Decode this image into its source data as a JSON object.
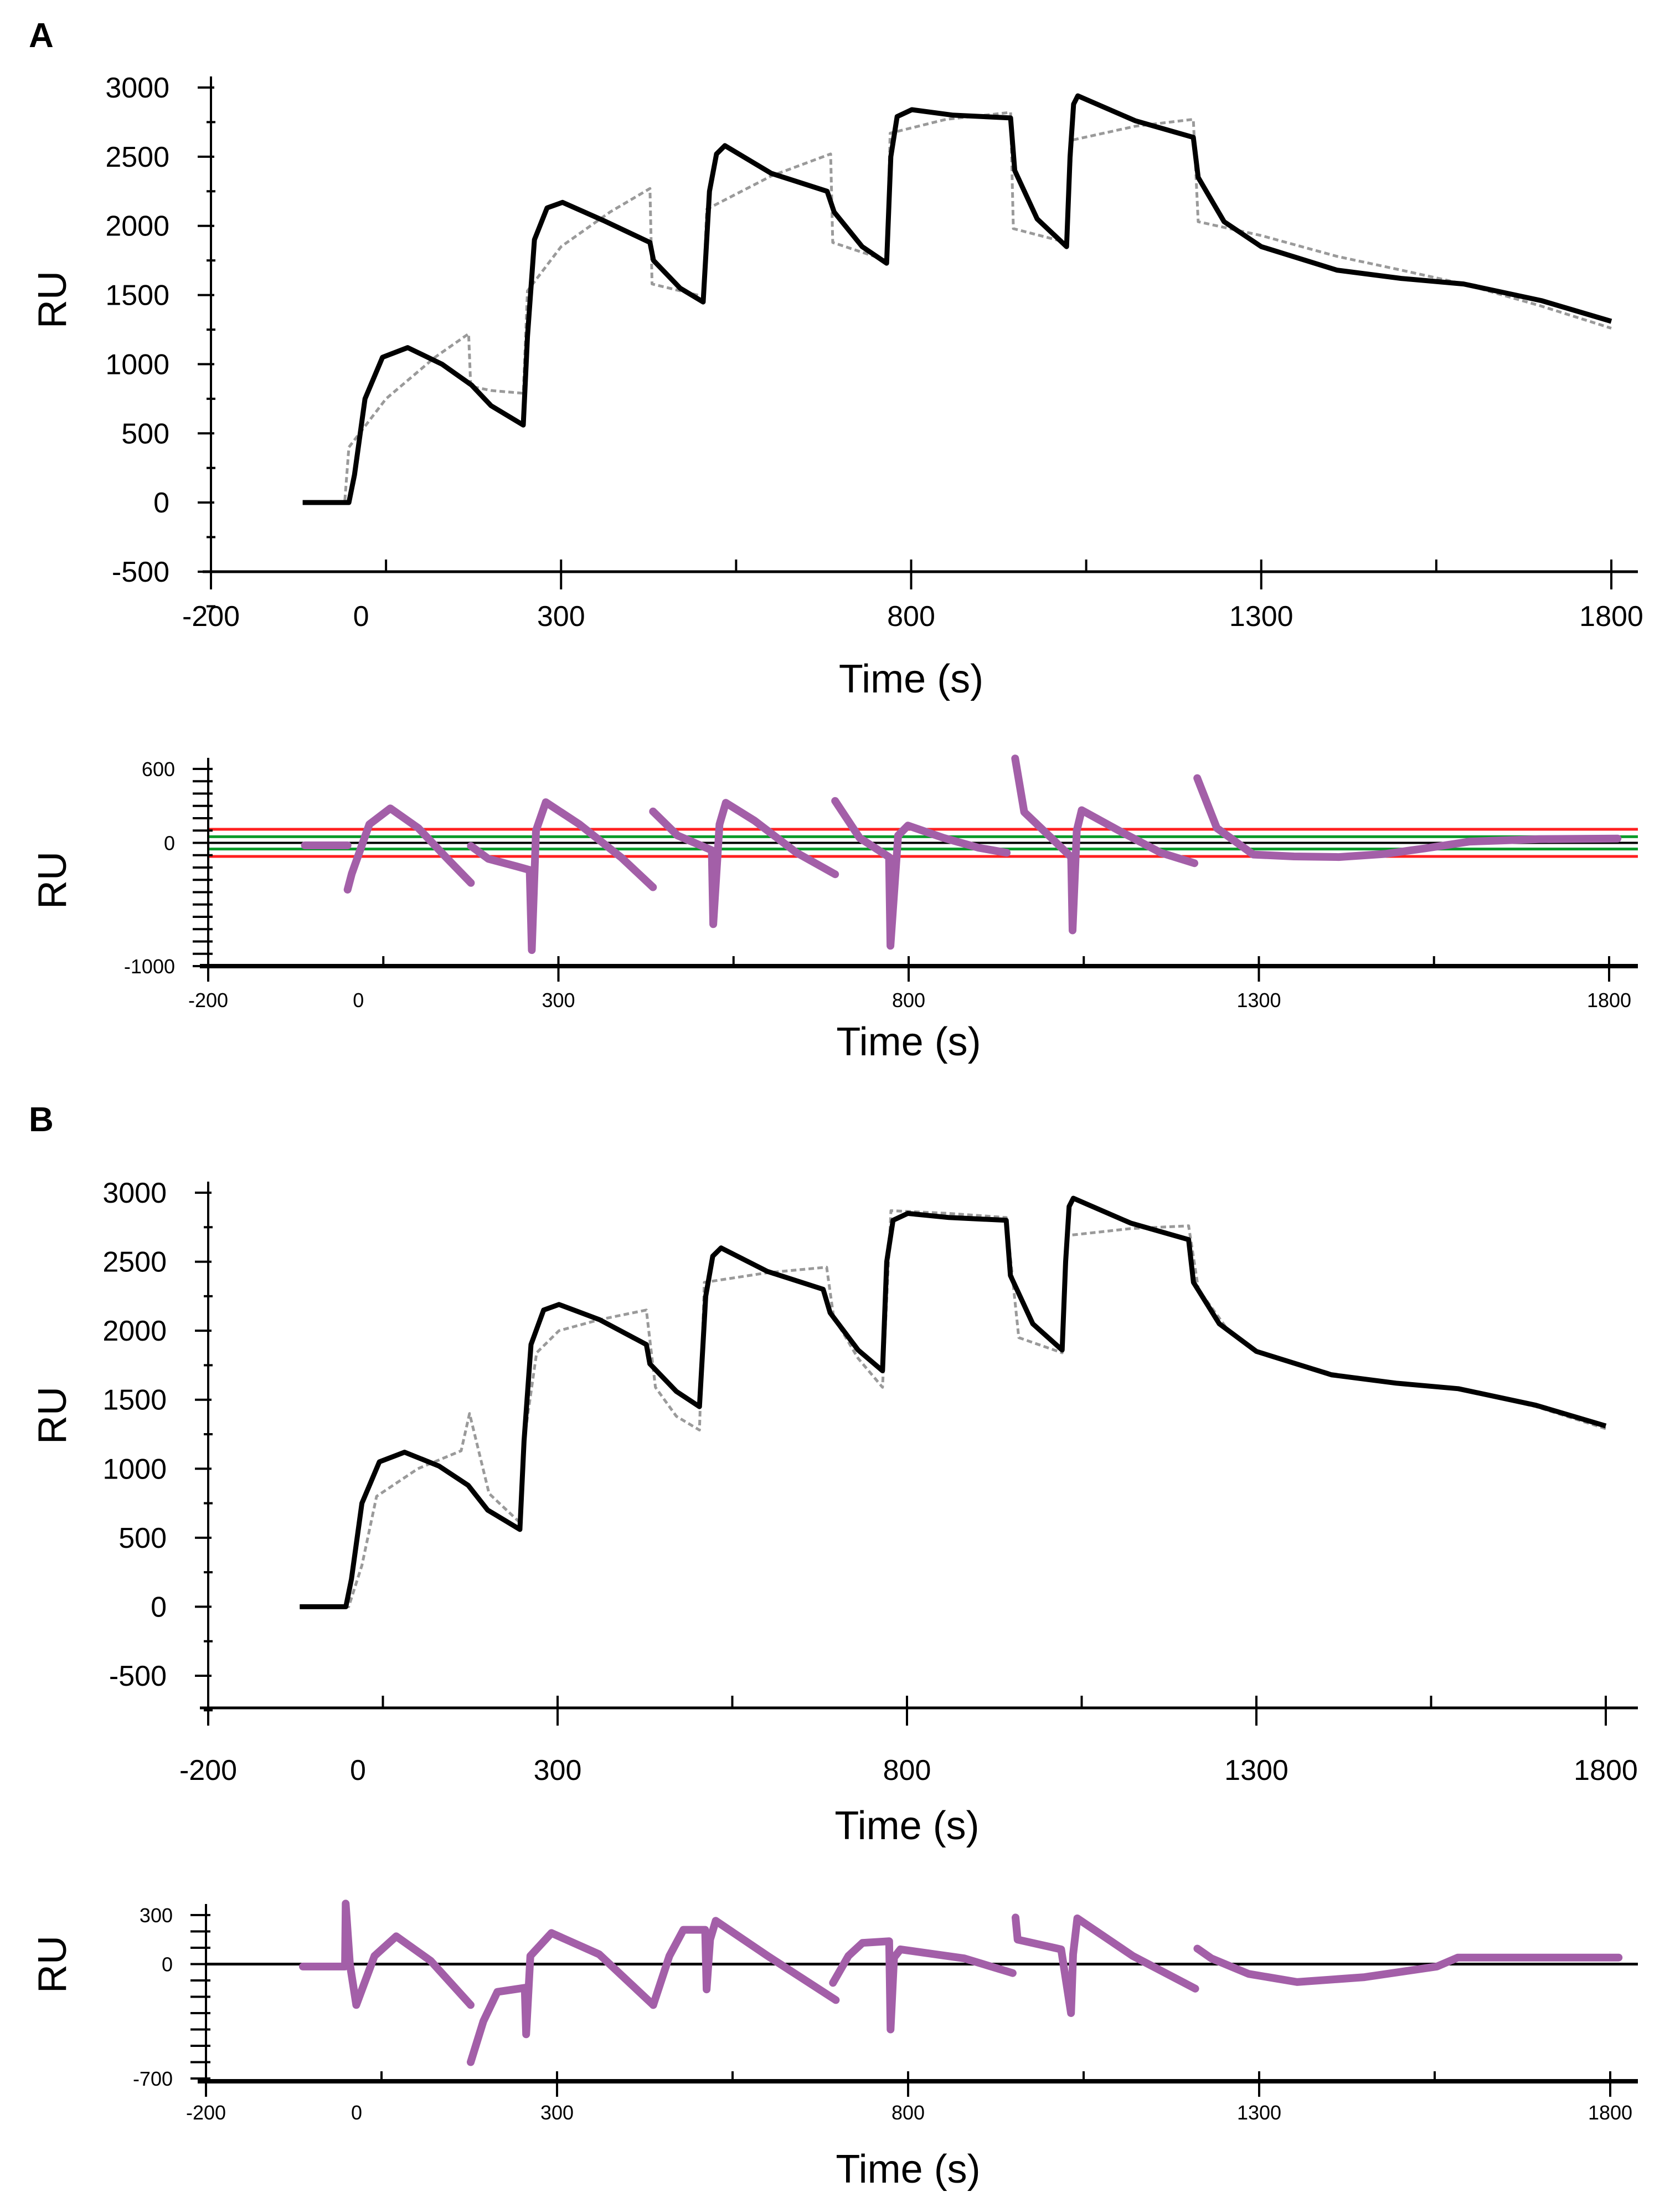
{
  "panels": {
    "A": {
      "letter": "A"
    },
    "B": {
      "letter": "B"
    }
  },
  "colors": {
    "data": "#000000",
    "fit": "#9a9a9a",
    "residual": "#a35fa8",
    "limit_red": "#ff2020",
    "limit_green": "#0a9a2a",
    "zero_line": "#000000"
  },
  "chart_data": [
    {
      "id": "A-sensorgram",
      "type": "line",
      "xlabel": "Time (s)",
      "ylabel": "RU",
      "xlim": [
        -200,
        1800
      ],
      "ylim": [
        -500,
        3000
      ],
      "xticks": [
        -200,
        50,
        300,
        550,
        800,
        1050,
        1300,
        1550,
        1800
      ],
      "xtick_labels": [
        {
          "at": -200,
          "label": "-200"
        },
        {
          "at": 50,
          "label": "0"
        },
        {
          "at": 300,
          "label": "300"
        },
        {
          "at": 800,
          "label": "800"
        },
        {
          "at": 1300,
          "label": "1300"
        },
        {
          "at": 1800,
          "label": "1800"
        }
      ],
      "yticks": [
        -500,
        0,
        500,
        1000,
        1500,
        2000,
        2500,
        3000
      ],
      "ytick_labels": [
        "-500",
        "0",
        "500",
        "1000",
        "1500",
        "2000",
        "2500",
        "3000"
      ],
      "series": [
        {
          "name": "data",
          "style": "solid",
          "x": [
            -69,
            -3,
            5,
            20,
            45,
            81,
            130,
            172,
            200,
            246,
            252,
            262,
            280,
            302,
            360,
            427,
            432,
            470,
            503,
            512,
            522,
            534,
            600,
            680,
            690,
            730,
            765,
            771,
            780,
            801,
            860,
            942,
            948,
            980,
            1022,
            1027,
            1032,
            1038,
            1120,
            1203,
            1210,
            1247,
            1300,
            1408,
            1500,
            1589,
            1700,
            1800
          ],
          "y": [
            0,
            0,
            200,
            750,
            1050,
            1120,
            1000,
            850,
            700,
            560,
            1200,
            1900,
            2130,
            2170,
            2040,
            1880,
            1750,
            1550,
            1450,
            2250,
            2520,
            2580,
            2380,
            2250,
            2100,
            1850,
            1730,
            2500,
            2790,
            2840,
            2800,
            2780,
            2400,
            2050,
            1850,
            2500,
            2880,
            2940,
            2760,
            2640,
            2350,
            2030,
            1850,
            1680,
            1620,
            1580,
            1460,
            1310
          ]
        },
        {
          "name": "fit",
          "style": "dashed",
          "x": [
            -69,
            -9,
            -3,
            50,
            120,
            168,
            171,
            200,
            246,
            252,
            300,
            370,
            427,
            430,
            503,
            508,
            600,
            685,
            688,
            765,
            770,
            850,
            942,
            946,
            1022,
            1030,
            1120,
            1203,
            1210,
            1300,
            1408,
            1500,
            1589,
            1700,
            1800
          ],
          "y": [
            0,
            0,
            400,
            750,
            1050,
            1220,
            840,
            810,
            790,
            1530,
            1850,
            2100,
            2270,
            1580,
            1490,
            2120,
            2360,
            2520,
            1880,
            1750,
            2670,
            2770,
            2820,
            1980,
            1880,
            2620,
            2720,
            2770,
            2030,
            1930,
            1780,
            1680,
            1580,
            1420,
            1260
          ]
        }
      ]
    },
    {
      "id": "A-residuals",
      "type": "line",
      "xlabel": "Time (s)",
      "ylabel": "RU",
      "xlim": [
        -200,
        1800
      ],
      "ylim": [
        -1000,
        600
      ],
      "xticks": [
        -200,
        50,
        300,
        550,
        800,
        1050,
        1300,
        1550,
        1800
      ],
      "xtick_labels": [
        {
          "at": -200,
          "label": "-200"
        },
        {
          "at": 50,
          "label": "0"
        },
        {
          "at": 300,
          "label": "300"
        },
        {
          "at": 800,
          "label": "800"
        },
        {
          "at": 1300,
          "label": "1300"
        },
        {
          "at": 1800,
          "label": "1800"
        }
      ],
      "yticks": [
        -1000,
        -900,
        -800,
        -700,
        -600,
        -500,
        -400,
        -300,
        -200,
        -100,
        0,
        100,
        200,
        300,
        400,
        500,
        600
      ],
      "ytick_labels": [
        {
          "at": 600,
          "label": "600"
        },
        {
          "at": 0,
          "label": "0"
        },
        {
          "at": -1000,
          "label": "-1000"
        }
      ],
      "limit_lines": [
        {
          "value": 110,
          "color": "red"
        },
        {
          "value": -110,
          "color": "red"
        },
        {
          "value": 50,
          "color": "green"
        },
        {
          "value": -50,
          "color": "green"
        }
      ],
      "residual_segments": [
        {
          "x": [
            -62,
            -1
          ],
          "y": [
            -20,
            -20
          ]
        },
        {
          "x": [
            -1,
            5,
            30,
            60,
            100,
            140,
            175
          ],
          "y": [
            -380,
            -250,
            150,
            280,
            120,
            -120,
            -325
          ]
        },
        {
          "x": [
            175,
            200,
            240,
            259,
            262,
            268,
            282,
            330,
            390,
            435
          ],
          "y": [
            -25,
            -130,
            -190,
            -220,
            -870,
            100,
            330,
            150,
            -120,
            -360
          ]
        },
        {
          "x": [
            435,
            470,
            519,
            521,
            530,
            539,
            580,
            640,
            695
          ],
          "y": [
            255,
            60,
            -60,
            -660,
            150,
            325,
            180,
            -80,
            -255
          ]
        },
        {
          "x": [
            695,
            730,
            772,
            774,
            785,
            799,
            850,
            900,
            940
          ],
          "y": [
            340,
            40,
            -115,
            -835,
            60,
            140,
            40,
            -40,
            -80
          ]
        },
        {
          "x": [
            952,
            965,
            1000,
            1032,
            1034,
            1040,
            1047,
            1100,
            1160,
            1208
          ],
          "y": [
            685,
            250,
            60,
            -115,
            -710,
            100,
            265,
            100,
            -80,
            -165
          ]
        },
        {
          "x": [
            1212,
            1240,
            1292,
            1350,
            1414,
            1480,
            1537,
            1600,
            1700,
            1812
          ],
          "y": [
            525,
            120,
            -95,
            -110,
            -115,
            -90,
            -45,
            10,
            30,
            35
          ]
        }
      ]
    },
    {
      "id": "B-sensorgram",
      "type": "line",
      "xlabel": "Time (s)",
      "ylabel": "RU",
      "xlim": [
        -200,
        1800
      ],
      "ylim": [
        -500,
        3000
      ],
      "xticks": [
        -200,
        50,
        300,
        550,
        800,
        1050,
        1300,
        1550,
        1800
      ],
      "xtick_labels": [
        {
          "at": -200,
          "label": "-200"
        },
        {
          "at": 50,
          "label": "0"
        },
        {
          "at": 300,
          "label": "300"
        },
        {
          "at": 800,
          "label": "800"
        },
        {
          "at": 1300,
          "label": "1300"
        },
        {
          "at": 1800,
          "label": "1800"
        }
      ],
      "yticks": [
        -500,
        0,
        500,
        1000,
        1500,
        2000,
        2500,
        3000
      ],
      "ytick_labels": [
        "-500",
        "0",
        "500",
        "1000",
        "1500",
        "2000",
        "2500",
        "3000"
      ],
      "series": [
        {
          "name": "data",
          "style": "solid",
          "x": [
            -69,
            -3,
            5,
            20,
            45,
            81,
            130,
            172,
            200,
            246,
            252,
            262,
            280,
            302,
            360,
            427,
            432,
            470,
            503,
            512,
            522,
            534,
            600,
            680,
            690,
            730,
            765,
            771,
            780,
            801,
            860,
            942,
            948,
            980,
            1022,
            1027,
            1032,
            1038,
            1120,
            1203,
            1210,
            1247,
            1300,
            1408,
            1500,
            1589,
            1700,
            1800
          ],
          "y": [
            0,
            0,
            200,
            750,
            1050,
            1120,
            1020,
            880,
            700,
            560,
            1200,
            1900,
            2150,
            2190,
            2080,
            1900,
            1760,
            1560,
            1450,
            2250,
            2540,
            2600,
            2430,
            2300,
            2130,
            1860,
            1710,
            2500,
            2800,
            2850,
            2820,
            2800,
            2400,
            2050,
            1860,
            2500,
            2900,
            2960,
            2780,
            2660,
            2350,
            2050,
            1850,
            1680,
            1620,
            1580,
            1460,
            1310
          ]
        },
        {
          "name": "fit",
          "style": "dashed",
          "x": [
            -69,
            1,
            20,
            41,
            100,
            162,
            174,
            202,
            246,
            252,
            270,
            302,
            360,
            427,
            440,
            470,
            503,
            510,
            600,
            685,
            695,
            730,
            765,
            777,
            860,
            942,
            960,
            1022,
            1030,
            1120,
            1203,
            1217,
            1260,
            1300,
            1408,
            1500,
            1589,
            1700,
            1800
          ],
          "y": [
            0,
            0,
            300,
            800,
            1000,
            1130,
            1400,
            820,
            610,
            1200,
            1840,
            2000,
            2080,
            2150,
            1590,
            1380,
            1280,
            2350,
            2420,
            2460,
            2100,
            1800,
            1590,
            2870,
            2850,
            2820,
            1950,
            1840,
            2690,
            2740,
            2760,
            2300,
            2000,
            1850,
            1690,
            1620,
            1580,
            1450,
            1290
          ]
        }
      ]
    },
    {
      "id": "B-residuals",
      "type": "line",
      "xlabel": "Time (s)",
      "ylabel": "RU",
      "xlim": [
        -200,
        1800
      ],
      "ylim": [
        -700,
        300
      ],
      "xticks": [
        -200,
        50,
        300,
        550,
        800,
        1050,
        1300,
        1550,
        1800
      ],
      "xtick_labels": [
        {
          "at": -200,
          "label": "-200"
        },
        {
          "at": 50,
          "label": "0"
        },
        {
          "at": 300,
          "label": "300"
        },
        {
          "at": 800,
          "label": "800"
        },
        {
          "at": 1300,
          "label": "1300"
        },
        {
          "at": 1800,
          "label": "1800"
        }
      ],
      "yticks": [
        -700,
        -600,
        -500,
        -400,
        -300,
        -200,
        -100,
        0,
        100,
        200,
        300
      ],
      "ytick_labels": [
        {
          "at": 300,
          "label": "300"
        },
        {
          "at": 0,
          "label": "0"
        },
        {
          "at": -700,
          "label": "-700"
        }
      ],
      "limit_lines": [
        {
          "value": 0,
          "color": "black"
        }
      ],
      "residual_segments": [
        {
          "x": [
            -62,
            -2,
            -1,
            5,
            14,
            40,
            71,
            120,
            177
          ],
          "y": [
            -15,
            -15,
            370,
            0,
            -250,
            50,
            170,
            20,
            -250
          ]
        },
        {
          "x": [
            177,
            195,
            215,
            254,
            256,
            262,
            292,
            360,
            437
          ],
          "y": [
            -600,
            -350,
            -170,
            -145,
            -430,
            50,
            190,
            60,
            -250
          ]
        },
        {
          "x": [
            437,
            460,
            480,
            511,
            513,
            518,
            526,
            600,
            697
          ],
          "y": [
            -250,
            50,
            210,
            210,
            -155,
            150,
            265,
            50,
            -220
          ]
        },
        {
          "x": [
            693,
            715,
            735,
            773,
            775,
            780,
            789,
            880,
            949
          ],
          "y": [
            -115,
            50,
            130,
            140,
            -400,
            40,
            90,
            35,
            -55
          ]
        },
        {
          "x": [
            953,
            956,
            1018,
            1032,
            1035,
            1041,
            1120,
            1209
          ],
          "y": [
            285,
            150,
            90,
            -300,
            60,
            280,
            50,
            -150
          ]
        },
        {
          "x": [
            1212,
            1232,
            1285,
            1354,
            1450,
            1553,
            1583,
            1700,
            1812
          ],
          "y": [
            95,
            35,
            -60,
            -110,
            -80,
            -15,
            40,
            40,
            40
          ]
        }
      ]
    }
  ]
}
